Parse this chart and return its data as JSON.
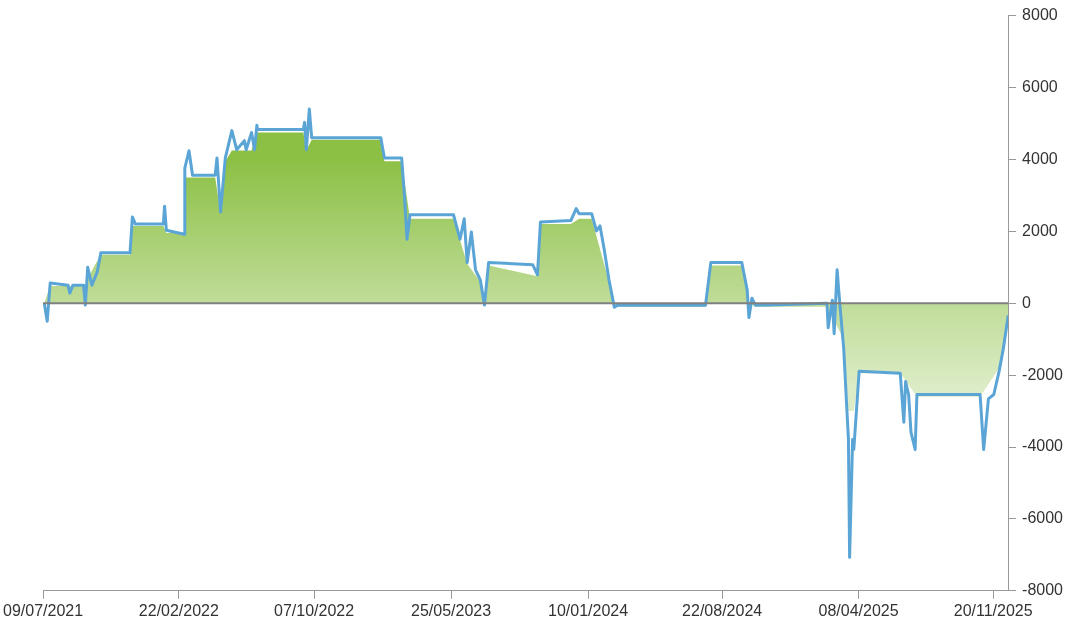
{
  "chart_data": {
    "type": "line",
    "xlim": [
      "2021-07-09",
      "2025-12-15"
    ],
    "xticks": [
      {
        "value": "2021-07-09",
        "label": "09/07/2021"
      },
      {
        "value": "2022-02-22",
        "label": "22/02/2022"
      },
      {
        "value": "2022-10-07",
        "label": "07/10/2022"
      },
      {
        "value": "2023-05-25",
        "label": "25/05/2023"
      },
      {
        "value": "2024-01-10",
        "label": "10/01/2024"
      },
      {
        "value": "2024-08-22",
        "label": "22/08/2024"
      },
      {
        "value": "2025-04-08",
        "label": "08/04/2025"
      },
      {
        "value": "2025-11-20",
        "label": "20/11/2025"
      }
    ],
    "ylim": [
      -8000,
      8000
    ],
    "yticks": [
      -8000,
      -6000,
      -4000,
      -2000,
      0,
      2000,
      4000,
      6000,
      8000
    ],
    "grid": false,
    "legend": false,
    "ref_lines": [
      {
        "axis": "y",
        "value": 0,
        "color": "#808080"
      }
    ],
    "series": [
      {
        "type": "area",
        "color": "#8cc045",
        "x": [
          "2021-07-11",
          "2021-07-21",
          "2021-09-15",
          "2021-09-18",
          "2021-09-22",
          "2021-10-14",
          "2021-12-02",
          "2021-12-06",
          "2022-01-27",
          "2022-02-01",
          "2022-03-03",
          "2022-03-04",
          "2022-04-24",
          "2022-05-03",
          "2022-05-11",
          "2022-05-22",
          "2022-06-24",
          "2022-07-03",
          "2022-09-19",
          "2022-09-24",
          "2022-10-03",
          "2023-01-27",
          "2023-02-02",
          "2023-03-03",
          "2023-03-17",
          "2023-05-29",
          "2023-06-21",
          "2023-07-13",
          "2023-07-20",
          "2023-07-27",
          "2023-10-17",
          "2023-10-22",
          "2023-12-12",
          "2023-12-26",
          "2024-01-16",
          "2024-02-14",
          "2024-02-23",
          "2024-07-25",
          "2024-08-03",
          "2024-09-24",
          "2024-10-06",
          "2024-10-17",
          "2025-02-14",
          "2025-03-14",
          "2025-03-22",
          "2025-03-31",
          "2025-04-09",
          "2025-06-17",
          "2025-07-15",
          "2025-10-29",
          "2025-11-30",
          "2025-12-15"
        ],
        "values": [
          0,
          480,
          480,
          0,
          700,
          1350,
          1350,
          2150,
          2150,
          1950,
          1950,
          3500,
          3500,
          2500,
          3950,
          4250,
          4250,
          4750,
          4750,
          4250,
          4550,
          4550,
          3950,
          3950,
          2350,
          2350,
          1100,
          600,
          0,
          1050,
          750,
          2200,
          2200,
          2350,
          2350,
          600,
          -100,
          -100,
          1050,
          1050,
          0,
          -100,
          -100,
          -1000,
          -3000,
          -3000,
          -1950,
          -1950,
          -2600,
          -2600,
          -1800,
          -300
        ]
      },
      {
        "type": "line",
        "color": "#5aa5d6",
        "x": [
          "2021-07-11",
          "2021-07-16",
          "2021-07-21",
          "2021-08-20",
          "2021-08-23",
          "2021-08-28",
          "2021-09-15",
          "2021-09-18",
          "2021-09-22",
          "2021-09-29",
          "2021-10-08",
          "2021-10-14",
          "2021-12-02",
          "2021-12-06",
          "2021-12-11",
          "2022-01-27",
          "2022-01-29",
          "2022-02-01",
          "2022-03-03",
          "2022-03-04",
          "2022-03-11",
          "2022-03-17",
          "2022-04-24",
          "2022-04-27",
          "2022-05-03",
          "2022-05-11",
          "2022-05-22",
          "2022-05-30",
          "2022-06-12",
          "2022-06-15",
          "2022-06-24",
          "2022-06-29",
          "2022-07-03",
          "2022-07-04",
          "2022-09-19",
          "2022-09-21",
          "2022-09-24",
          "2022-09-29",
          "2022-10-03",
          "2023-01-27",
          "2023-02-02",
          "2023-03-03",
          "2023-03-08",
          "2023-03-12",
          "2023-03-17",
          "2023-05-29",
          "2023-06-09",
          "2023-06-16",
          "2023-06-21",
          "2023-06-28",
          "2023-07-05",
          "2023-07-13",
          "2023-07-20",
          "2023-07-27",
          "2023-10-09",
          "2023-10-17",
          "2023-10-22",
          "2023-12-12",
          "2023-12-21",
          "2023-12-26",
          "2024-01-16",
          "2024-01-24",
          "2024-01-30",
          "2024-02-06",
          "2024-02-14",
          "2024-02-23",
          "2024-02-28",
          "2024-07-25",
          "2024-08-03",
          "2024-09-24",
          "2024-10-03",
          "2024-10-06",
          "2024-10-11",
          "2024-10-17",
          "2025-02-14",
          "2025-02-16",
          "2025-02-23",
          "2025-02-26",
          "2025-03-03",
          "2025-03-08",
          "2025-03-14",
          "2025-03-22",
          "2025-03-24",
          "2025-03-29",
          "2025-03-31",
          "2025-04-09",
          "2025-06-17",
          "2025-06-23",
          "2025-06-26",
          "2025-07-01",
          "2025-07-05",
          "2025-07-12",
          "2025-07-15",
          "2025-10-29",
          "2025-11-04",
          "2025-11-12",
          "2025-11-21",
          "2025-11-30",
          "2025-12-07",
          "2025-12-14",
          "2025-12-15"
        ],
        "values": [
          0,
          -500,
          560,
          500,
          280,
          500,
          500,
          -50,
          1000,
          500,
          870,
          1400,
          1400,
          2400,
          2200,
          2200,
          2700,
          2030,
          1920,
          3760,
          4240,
          3560,
          3560,
          4040,
          2540,
          4040,
          4800,
          4270,
          4520,
          4270,
          4750,
          4270,
          4950,
          4830,
          4830,
          5030,
          4270,
          5400,
          4600,
          4600,
          4040,
          4040,
          2910,
          1780,
          2460,
          2460,
          1780,
          2350,
          1130,
          1980,
          930,
          650,
          -50,
          1130,
          1070,
          790,
          2260,
          2300,
          2630,
          2490,
          2490,
          2010,
          2150,
          1500,
          650,
          -110,
          -60,
          -60,
          1130,
          1130,
          370,
          -400,
          140,
          -60,
          0,
          -680,
          80,
          -850,
          930,
          -110,
          -1240,
          -3790,
          -7070,
          -3790,
          -4070,
          -1890,
          -1950,
          -3310,
          -2180,
          -2540,
          -3590,
          -4070,
          -2540,
          -2540,
          -4070,
          -2660,
          -2540,
          -1890,
          -1270,
          -480,
          -340
        ]
      }
    ]
  }
}
